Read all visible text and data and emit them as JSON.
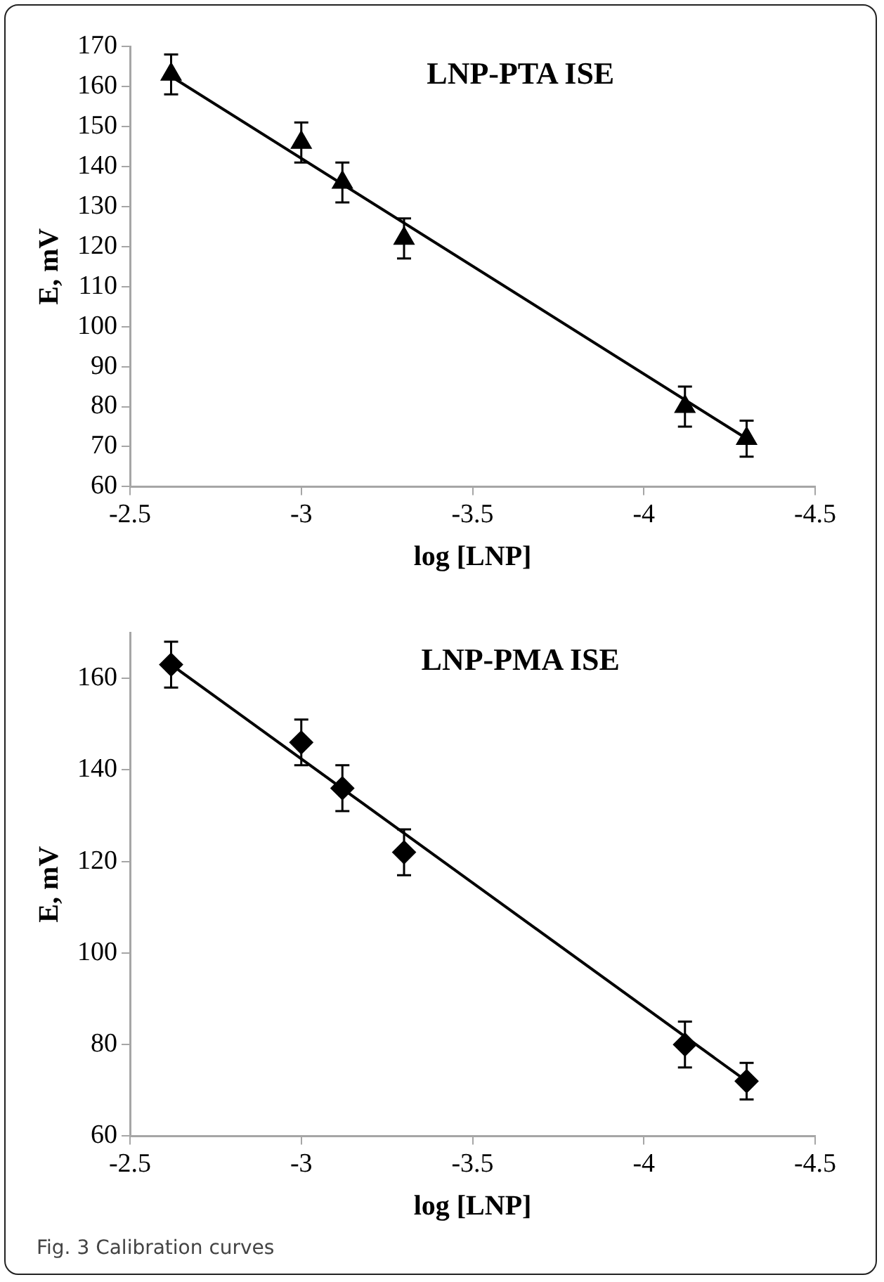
{
  "chart_data": [
    {
      "type": "scatter",
      "title": "LNP-PTA ISE",
      "xlabel": "log [LNP]",
      "ylabel": "E, mV",
      "xlim": [
        -2.5,
        -4.5
      ],
      "xticks": [
        -2.5,
        -3,
        -3.5,
        -4,
        -4.5
      ],
      "ylim": [
        60,
        170
      ],
      "yticks": [
        60,
        70,
        80,
        90,
        100,
        110,
        120,
        130,
        140,
        150,
        160,
        170
      ],
      "grid": false,
      "legend": false,
      "series": [
        {
          "color": "#000000",
          "marker": "triangle",
          "x": [
            -2.62,
            -3,
            -3.12,
            -3.3,
            -4.12,
            -4.3
          ],
          "values": [
            163,
            146,
            136,
            122,
            80,
            72
          ],
          "errors": [
            5,
            5,
            5,
            5,
            5,
            4.5
          ]
        },
        {
          "type": "line",
          "color": "#000000",
          "marker": "none",
          "x": [
            -2.62,
            -4.3
          ],
          "values": [
            162.5,
            72
          ]
        }
      ]
    },
    {
      "type": "scatter",
      "title": "LNP-PMA ISE",
      "xlabel": "log [LNP]",
      "ylabel": "E, mV",
      "xlim": [
        -2.5,
        -4.5
      ],
      "xticks": [
        -2.5,
        -3,
        -3.5,
        -4,
        -4.5
      ],
      "ylim": [
        60,
        170
      ],
      "yticks": [
        60,
        80,
        100,
        120,
        140,
        160
      ],
      "grid": false,
      "legend": false,
      "annotations": [
        "Fig. 3 Calibration curves"
      ],
      "series": [
        {
          "color": "#000000",
          "marker": "diamond",
          "x": [
            -2.62,
            -3,
            -3.12,
            -3.3,
            -4.12,
            -4.3
          ],
          "values": [
            163,
            146,
            136,
            122,
            80,
            72
          ],
          "errors": [
            5,
            5,
            5,
            5,
            5,
            4
          ]
        },
        {
          "type": "line",
          "color": "#000000",
          "marker": "none",
          "x": [
            -2.62,
            -4.3
          ],
          "values": [
            163,
            72
          ]
        }
      ]
    }
  ]
}
